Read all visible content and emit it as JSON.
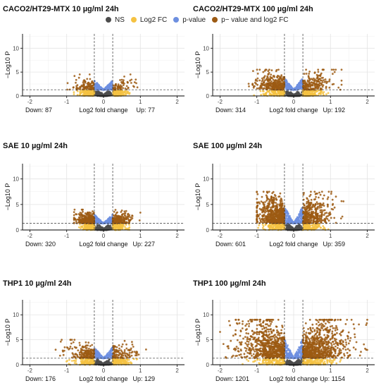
{
  "legend": {
    "ns": {
      "label": "NS",
      "color": "#4d4d4d"
    },
    "log2fc": {
      "label": "Log2 FC",
      "color": "#f5c242"
    },
    "pvalue": {
      "label": "p-value",
      "color": "#6d8fe0"
    },
    "both": {
      "label": "p− value and log2 FC",
      "color": "#9c5a13"
    }
  },
  "axis": {
    "ylabel": "−Log10 P",
    "xlabel": "Log2 fold change"
  },
  "chart_data": [
    {
      "type": "scatter",
      "title": "CACO2/HT29-MTX 10 µg/ml 24h",
      "down_label": "Down: 87",
      "up_label": "Up: 77",
      "down": 87,
      "up": 77,
      "xlim": [
        -2.2,
        2.2
      ],
      "ylim": [
        0,
        13
      ],
      "xticks": [
        -2,
        -1,
        0,
        1,
        2
      ],
      "yticks": [
        0,
        5,
        10
      ],
      "fc_cutoff": 0.25,
      "p_cutoff": 1.3,
      "max_y": 4.5,
      "spread": 0.28,
      "left_tail": -1.3,
      "right_tail": 1.0
    },
    {
      "type": "scatter",
      "title": "CACO2/HT29-MTX 100 µg/ml 24h",
      "down_label": "Down: 314",
      "up_label": "Up: 192",
      "down": 314,
      "up": 192,
      "xlim": [
        -2.2,
        2.2
      ],
      "ylim": [
        0,
        13
      ],
      "xticks": [
        -2,
        -1,
        0,
        1,
        2
      ],
      "yticks": [
        0,
        5,
        10
      ],
      "fc_cutoff": 0.25,
      "p_cutoff": 1.3,
      "max_y": 5.5,
      "spread": 0.4,
      "left_tail": -2.0,
      "right_tail": 1.3
    },
    {
      "type": "scatter",
      "title": "SAE 10 µg/ml 24h",
      "down_label": "Down: 320",
      "up_label": "Up: 227",
      "down": 320,
      "up": 227,
      "xlim": [
        -2.2,
        2.2
      ],
      "ylim": [
        0,
        13
      ],
      "xticks": [
        -2,
        -1,
        0,
        1,
        2
      ],
      "yticks": [
        0,
        5,
        10
      ],
      "fc_cutoff": 0.25,
      "p_cutoff": 1.3,
      "max_y": 4.0,
      "spread": 0.25,
      "left_tail": -0.8,
      "right_tail": 1.0
    },
    {
      "type": "scatter",
      "title": "SAE 100 µg/ml 24h",
      "down_label": "Down: 601",
      "up_label": "Up: 359",
      "down": 601,
      "up": 359,
      "xlim": [
        -2.2,
        2.2
      ],
      "ylim": [
        0,
        13
      ],
      "xticks": [
        -2,
        -1,
        0,
        1,
        2
      ],
      "yticks": [
        0,
        5,
        10
      ],
      "fc_cutoff": 0.25,
      "p_cutoff": 1.3,
      "max_y": 7.5,
      "spread": 0.35,
      "left_tail": -1.0,
      "right_tail": 1.4
    },
    {
      "type": "scatter",
      "title": "THP1 10 µg/ml 24h",
      "down_label": "Down: 176",
      "up_label": "Up: 129",
      "down": 176,
      "up": 129,
      "xlim": [
        -2.2,
        2.2
      ],
      "ylim": [
        0,
        13
      ],
      "xticks": [
        -2,
        -1,
        0,
        1,
        2
      ],
      "yticks": [
        0,
        5,
        10
      ],
      "fc_cutoff": 0.25,
      "p_cutoff": 1.3,
      "max_y": 5.0,
      "spread": 0.35,
      "left_tail": -1.3,
      "right_tail": 1.3
    },
    {
      "type": "scatter",
      "title": "THP1 100 µg/ml 24h",
      "down_label": "Down: 1201",
      "up_label": "Up: 1154",
      "down": 1201,
      "up": 1154,
      "xlim": [
        -2.2,
        2.2
      ],
      "ylim": [
        0,
        13
      ],
      "xticks": [
        -2,
        -1,
        0,
        1,
        2
      ],
      "yticks": [
        0,
        5,
        10
      ],
      "fc_cutoff": 0.25,
      "p_cutoff": 1.3,
      "max_y": 9.0,
      "spread": 0.6,
      "left_tail": -2.0,
      "right_tail": 2.0
    }
  ]
}
